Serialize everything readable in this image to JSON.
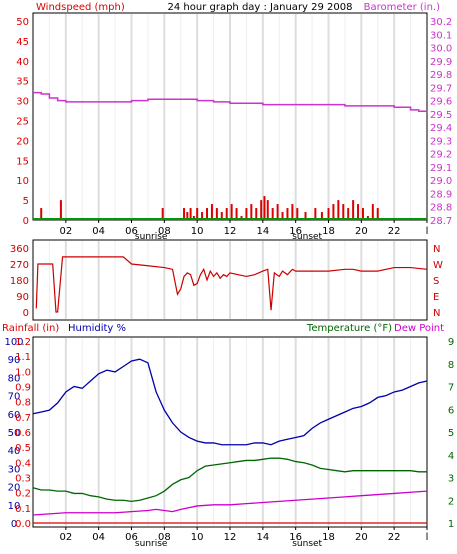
{
  "title": "24 hour graph day : January 29 2008",
  "time_ticks": [
    "02",
    "04",
    "06",
    "08",
    "10",
    "12",
    "14",
    "16",
    "18",
    "20",
    "22",
    "l"
  ],
  "sunrise_label": "sunrise",
  "sunset_label": "sunset",
  "colors": {
    "wind": "#dd0000",
    "baro": "#cc33cc",
    "dir": "#cc0000",
    "rain": "#dd0000",
    "hum": "#0000aa",
    "temp": "#006600",
    "dew": "#cc00cc",
    "frame": "#000000",
    "grid": "#cccccc"
  },
  "panel_wind": {
    "left_label": "Windspeed (mph)",
    "right_label": "Barometer (in.)",
    "left_ticks": [
      "0",
      "5",
      "10",
      "15",
      "20",
      "25",
      "30",
      "35",
      "40",
      "45",
      "50"
    ],
    "right_ticks": [
      "28.7",
      "28.8",
      "28.9",
      "29.0",
      "29.1",
      "29.2",
      "29.3",
      "29.4",
      "29.5",
      "29.6",
      "29.7",
      "29.8",
      "29.9",
      "30.0",
      "30.1",
      "30.2"
    ]
  },
  "panel_dir": {
    "left_ticks": [
      "360",
      "270",
      "180",
      "90",
      "0"
    ],
    "right_labels": [
      "N",
      "W",
      "S",
      "E",
      "N"
    ]
  },
  "panel_env": {
    "rain_label": "Rainfall (in)",
    "hum_label": "Humidity %",
    "temp_label": "Temperature (°F)",
    "dew_label": "Dew Point",
    "hum_ticks": [
      "0",
      "10",
      "20",
      "30",
      "40",
      "50",
      "60",
      "70",
      "80",
      "90",
      "100"
    ],
    "rain_ticks": [
      "0.0",
      "0.1",
      "0.2",
      "0.3",
      "0.4",
      "0.5",
      "0.6",
      "0.7",
      "0.8",
      "0.9",
      "1.0",
      "1.1",
      "1.2"
    ],
    "right_ticks": [
      "1",
      "2",
      "3",
      "4",
      "5",
      "6",
      "7",
      "8",
      "9"
    ]
  },
  "chart_data": [
    {
      "type": "line",
      "x_unit": "hour",
      "xlim": [
        0,
        24
      ],
      "series": [
        {
          "name": "Windspeed (mph)",
          "axis": "left",
          "ylim": [
            0,
            50
          ],
          "x": [
            0.3,
            0.5,
            1.6,
            1.7,
            7.8,
            7.9,
            9.2,
            9.4,
            9.6,
            9.8,
            10.0,
            10.3,
            10.6,
            10.9,
            11.2,
            11.5,
            11.8,
            12.1,
            12.4,
            12.7,
            13.0,
            13.3,
            13.6,
            13.9,
            14.1,
            14.3,
            14.6,
            14.9,
            15.2,
            15.5,
            15.8,
            16.1,
            16.6,
            17.2,
            17.6,
            18.0,
            18.3,
            18.6,
            18.9,
            19.2,
            19.5,
            19.8,
            20.1,
            20.4,
            20.7,
            21.0
          ],
          "values": [
            0,
            3,
            0,
            5,
            0,
            3,
            3,
            2,
            3,
            1,
            3,
            2,
            3,
            4,
            3,
            2,
            3,
            4,
            3,
            1,
            3,
            4,
            3,
            5,
            6,
            5,
            3,
            4,
            2,
            3,
            4,
            3,
            2,
            3,
            2,
            3,
            4,
            5,
            4,
            3,
            5,
            4,
            3,
            1,
            4,
            3
          ]
        },
        {
          "name": "Barometer (in.)",
          "axis": "right",
          "ylim": [
            28.7,
            30.2
          ],
          "x": [
            0,
            0.5,
            1.0,
            1.5,
            2.0,
            3.0,
            4.0,
            5.0,
            6.0,
            7.0,
            8.0,
            9.0,
            10.0,
            11.0,
            12.0,
            13.0,
            14.0,
            15.0,
            16.0,
            17.0,
            18.0,
            19.0,
            20.0,
            21.0,
            22.0,
            23.0,
            23.5,
            24.0
          ],
          "values": [
            29.66,
            29.65,
            29.62,
            29.6,
            29.59,
            29.59,
            29.59,
            29.59,
            29.6,
            29.61,
            29.61,
            29.61,
            29.6,
            29.59,
            29.58,
            29.58,
            29.57,
            29.57,
            29.57,
            29.57,
            29.57,
            29.56,
            29.56,
            29.56,
            29.55,
            29.53,
            29.52,
            29.51
          ]
        }
      ]
    },
    {
      "type": "line",
      "x_unit": "hour",
      "xlim": [
        0,
        24
      ],
      "series": [
        {
          "name": "Wind direction",
          "ylim": [
            0,
            360
          ],
          "x": [
            0.2,
            0.3,
            0.5,
            1.2,
            1.4,
            1.5,
            1.8,
            2.5,
            4.0,
            5.0,
            5.5,
            6.0,
            7.0,
            8.0,
            8.5,
            8.8,
            9.0,
            9.2,
            9.4,
            9.6,
            9.8,
            10.0,
            10.2,
            10.4,
            10.6,
            10.8,
            11.0,
            11.2,
            11.4,
            11.6,
            11.8,
            12.0,
            12.5,
            13.0,
            13.5,
            14.0,
            14.3,
            14.5,
            14.7,
            15.0,
            15.2,
            15.5,
            15.8,
            16.0,
            16.3,
            17.0,
            18.0,
            19.0,
            19.5,
            20.0,
            21.0,
            22.0,
            23.0,
            24.0
          ],
          "values": [
            20,
            270,
            270,
            270,
            0,
            0,
            310,
            310,
            310,
            310,
            310,
            270,
            260,
            250,
            240,
            100,
            130,
            200,
            220,
            210,
            150,
            160,
            210,
            240,
            180,
            230,
            200,
            220,
            190,
            210,
            200,
            220,
            210,
            200,
            210,
            230,
            240,
            10,
            220,
            200,
            230,
            210,
            240,
            230,
            230,
            230,
            230,
            240,
            240,
            230,
            230,
            250,
            250,
            240
          ]
        }
      ]
    },
    {
      "type": "line",
      "x_unit": "hour",
      "xlim": [
        0,
        24
      ],
      "series": [
        {
          "name": "Humidity %",
          "axis": "left",
          "ylim": [
            0,
            100
          ],
          "x": [
            0,
            0.5,
            1,
            1.5,
            2,
            2.5,
            3,
            3.5,
            4,
            4.5,
            5,
            5.5,
            6,
            6.5,
            7,
            7.5,
            8,
            8.5,
            9,
            9.5,
            10,
            10.5,
            11,
            11.5,
            12,
            12.5,
            13,
            13.5,
            14,
            14.5,
            15,
            15.5,
            16,
            16.5,
            17,
            17.5,
            18,
            18.5,
            19,
            19.5,
            20,
            20.5,
            21,
            21.5,
            22,
            22.5,
            23,
            23.5,
            24
          ],
          "values": [
            60,
            61,
            62,
            66,
            72,
            75,
            74,
            78,
            82,
            84,
            83,
            86,
            89,
            90,
            88,
            72,
            62,
            55,
            50,
            47,
            45,
            44,
            44,
            43,
            43,
            43,
            43,
            44,
            44,
            43,
            45,
            46,
            47,
            48,
            52,
            55,
            57,
            59,
            61,
            63,
            64,
            66,
            69,
            70,
            72,
            73,
            75,
            77,
            78
          ]
        },
        {
          "name": "Temperature (°F)",
          "axis": "right",
          "ylim": [
            1,
            9
          ],
          "x": [
            0,
            0.5,
            1,
            1.5,
            2,
            2.5,
            3,
            3.5,
            4,
            4.5,
            5,
            5.5,
            6,
            6.5,
            7,
            7.5,
            8,
            8.5,
            9,
            9.5,
            10,
            10.5,
            11,
            11.5,
            12,
            12.5,
            13,
            13.5,
            14,
            14.5,
            15,
            15.5,
            16,
            16.5,
            17,
            17.5,
            18,
            18.5,
            19,
            19.5,
            20,
            20.5,
            21,
            21.5,
            22,
            22.5,
            23,
            23.5,
            24
          ],
          "values": [
            2.55,
            2.45,
            2.45,
            2.4,
            2.4,
            2.3,
            2.3,
            2.2,
            2.15,
            2.05,
            2.0,
            2.0,
            1.95,
            2.0,
            2.1,
            2.2,
            2.4,
            2.7,
            2.9,
            3.0,
            3.3,
            3.5,
            3.55,
            3.6,
            3.65,
            3.7,
            3.75,
            3.75,
            3.8,
            3.85,
            3.85,
            3.8,
            3.7,
            3.65,
            3.55,
            3.4,
            3.35,
            3.3,
            3.25,
            3.3,
            3.3,
            3.3,
            3.3,
            3.3,
            3.3,
            3.3,
            3.3,
            3.25,
            3.25
          ]
        },
        {
          "name": "Dew Point",
          "axis": "right",
          "ylim": [
            1,
            9
          ],
          "x": [
            0,
            1,
            2,
            3,
            4,
            5,
            6,
            7,
            7.5,
            8,
            8.5,
            9,
            10,
            11,
            12,
            13,
            14,
            15,
            16,
            17,
            18,
            19,
            20,
            21,
            22,
            23,
            24
          ],
          "values": [
            1.35,
            1.4,
            1.45,
            1.45,
            1.45,
            1.45,
            1.5,
            1.55,
            1.6,
            1.55,
            1.5,
            1.6,
            1.75,
            1.8,
            1.8,
            1.85,
            1.9,
            1.95,
            2.0,
            2.05,
            2.1,
            2.15,
            2.2,
            2.25,
            2.3,
            2.35,
            2.4
          ]
        },
        {
          "name": "Rainfall (in)",
          "axis": "rain",
          "ylim": [
            0,
            1.2
          ],
          "x": [
            0,
            24
          ],
          "values": [
            0,
            0
          ]
        }
      ]
    }
  ]
}
